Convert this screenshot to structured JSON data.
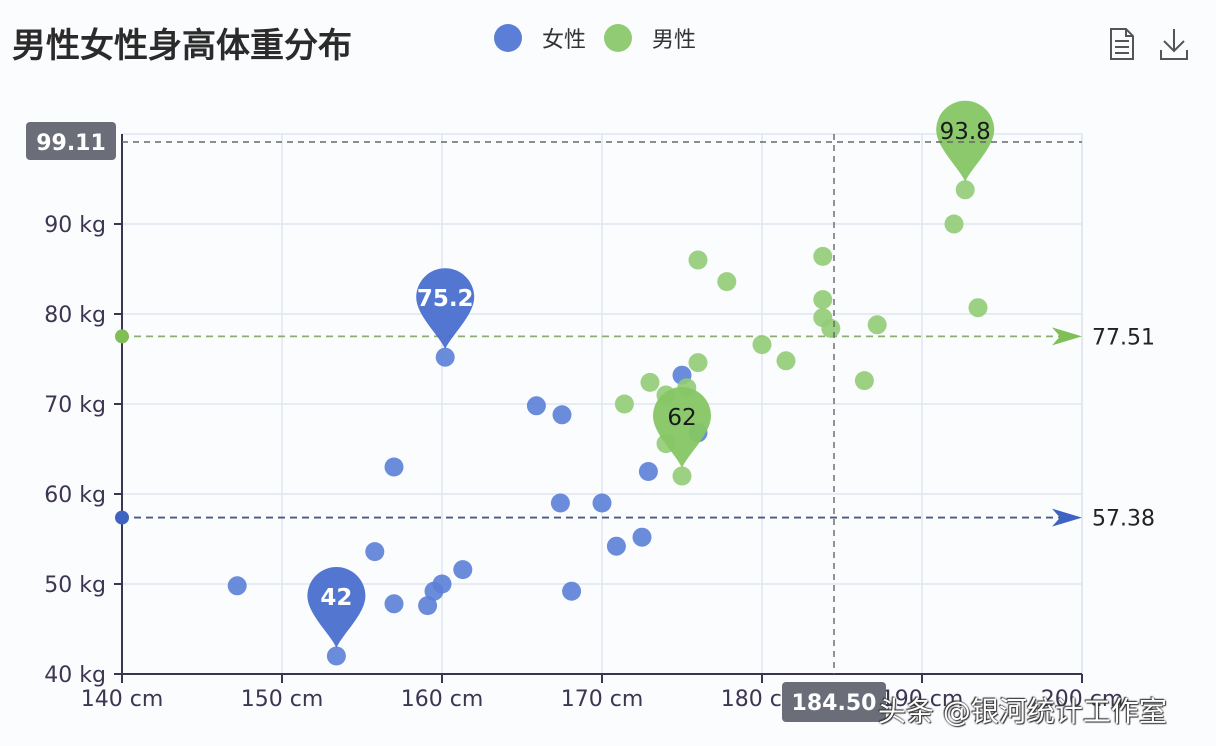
{
  "header": {
    "title": "男性女性身高体重分布"
  },
  "legend": [
    {
      "label": "女性",
      "color": "#5b7fd6"
    },
    {
      "label": "男性",
      "color": "#91cc75"
    }
  ],
  "toolbox": {
    "data_view_icon": "document-icon",
    "save_icon": "download-icon"
  },
  "watermark": "头条 @银河统计工作室",
  "axis_pointer": {
    "y_label": "99.11",
    "x_label": "184.50"
  },
  "mark_lines": {
    "female_avg": "57.38",
    "male_avg": "77.51"
  },
  "mark_points": {
    "female_max": "75.2",
    "female_min": "42",
    "male_max": "93.8",
    "male_min": "62"
  },
  "chart_data": {
    "type": "scatter",
    "title": "男性女性身高体重分布",
    "xlabel": "",
    "ylabel": "",
    "xlim": [
      140,
      200
    ],
    "ylim": [
      40,
      100
    ],
    "x_ticks": [
      "140 cm",
      "150 cm",
      "160 cm",
      "170 cm",
      "180 cm",
      "190 cm",
      "200 cm"
    ],
    "y_ticks": [
      "40 kg",
      "50 kg",
      "60 kg",
      "70 kg",
      "80 kg",
      "90 kg"
    ],
    "grid": true,
    "legend_position": "top",
    "series": [
      {
        "name": "女性",
        "color": "#5b7fd6",
        "points": [
          [
            147.2,
            49.8
          ],
          [
            153.4,
            42.0
          ],
          [
            155.8,
            53.6
          ],
          [
            157.0,
            63.0
          ],
          [
            157.0,
            47.8
          ],
          [
            159.1,
            47.6
          ],
          [
            159.5,
            49.2
          ],
          [
            160.0,
            50.0
          ],
          [
            160.2,
            75.2
          ],
          [
            161.3,
            51.6
          ],
          [
            165.9,
            69.8
          ],
          [
            167.5,
            68.8
          ],
          [
            167.4,
            59.0
          ],
          [
            168.1,
            49.2
          ],
          [
            170.0,
            59.0
          ],
          [
            170.9,
            54.2
          ],
          [
            172.5,
            55.2
          ],
          [
            172.9,
            62.5
          ],
          [
            175.0,
            73.2
          ],
          [
            176.0,
            66.8
          ]
        ],
        "mark_point_max": 75.2,
        "mark_point_min": 42,
        "mark_line_average": 57.38
      },
      {
        "name": "男性",
        "color": "#91cc75",
        "points": [
          [
            171.4,
            70.0
          ],
          [
            173.0,
            72.4
          ],
          [
            174.0,
            65.6
          ],
          [
            174.0,
            71.0
          ],
          [
            175.0,
            62.0
          ],
          [
            175.3,
            71.8
          ],
          [
            176.0,
            86.0
          ],
          [
            176.0,
            74.6
          ],
          [
            177.8,
            83.6
          ],
          [
            180.0,
            76.6
          ],
          [
            181.5,
            74.8
          ],
          [
            183.8,
            86.4
          ],
          [
            183.8,
            81.6
          ],
          [
            183.8,
            79.6
          ],
          [
            184.3,
            78.4
          ],
          [
            186.4,
            72.6
          ],
          [
            187.2,
            78.8
          ],
          [
            192.0,
            90.0
          ],
          [
            192.7,
            93.8
          ],
          [
            193.5,
            80.7
          ]
        ],
        "mark_point_max": 93.8,
        "mark_point_min": 62,
        "mark_line_average": 77.51
      }
    ],
    "axis_pointer": {
      "x": 184.5,
      "y": 99.11
    }
  }
}
